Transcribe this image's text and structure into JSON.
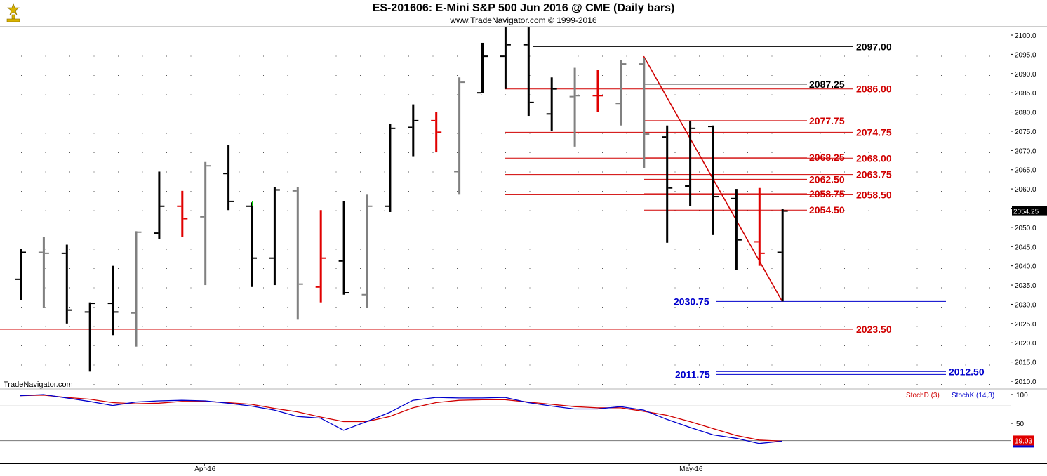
{
  "header": {
    "title": "ES-201606:  E-Mini S&P 500 Jun 2016 @ CME  (Daily bars)",
    "subtitle": "www.TradeNavigator.com © 1999-2016"
  },
  "watermark": "TradeNavigator.com",
  "colors": {
    "up": "#000000",
    "down": "#808080",
    "red_bar": "#e00000",
    "green": "#00cc00",
    "red_line": "#d00000",
    "blue": "#0000cc",
    "black_line": "#000000"
  },
  "chart_data": {
    "type": "bar",
    "price_axis": {
      "min": 2008,
      "max": 2103,
      "ticks": [
        2010,
        2015,
        2020,
        2025,
        2030,
        2035,
        2040,
        2045,
        2050,
        2055,
        2060,
        2065,
        2070,
        2075,
        2080,
        2085,
        2090,
        2095,
        2100
      ]
    },
    "last_price_label": "2054.25",
    "x_tick_labels": [
      {
        "index": 8,
        "label": "Apr-16"
      },
      {
        "index": 29,
        "label": "May-16"
      }
    ],
    "bars": [
      {
        "o": 2036.5,
        "h": 2044.5,
        "l": 2031,
        "c": 2043.5,
        "color": "up"
      },
      {
        "o": 2043.5,
        "h": 2047.5,
        "l": 2029,
        "c": 2043.25,
        "color": "down"
      },
      {
        "o": 2043.25,
        "h": 2045.5,
        "l": 2025,
        "c": 2028.5,
        "color": "up"
      },
      {
        "o": 2028,
        "h": 2030.5,
        "l": 2012.5,
        "c": 2030.25,
        "color": "up"
      },
      {
        "o": 2030.25,
        "h": 2040,
        "l": 2022,
        "c": 2028,
        "color": "up"
      },
      {
        "o": 2027.75,
        "h": 2049,
        "l": 2019,
        "c": 2048.75,
        "color": "down"
      },
      {
        "o": 2048.5,
        "h": 2064.5,
        "l": 2047,
        "c": 2055.5,
        "color": "up"
      },
      {
        "o": 2055.5,
        "h": 2059.5,
        "l": 2047.5,
        "c": 2052.25,
        "color": "red"
      },
      {
        "o": 2052.75,
        "h": 2067,
        "l": 2035,
        "c": 2066,
        "color": "down"
      },
      {
        "o": 2064,
        "h": 2071.5,
        "l": 2054.5,
        "c": 2056.75,
        "color": "up"
      },
      {
        "o": 2055.5,
        "h": 2056.5,
        "l": 2034.5,
        "c": 2042,
        "color": "up"
      },
      {
        "o": 2042,
        "h": 2060.5,
        "l": 2035,
        "c": 2059.75,
        "color": "up"
      },
      {
        "o": 2059.5,
        "h": 2060.5,
        "l": 2026,
        "c": 2035.25,
        "color": "down"
      },
      {
        "o": 2034.5,
        "h": 2054.5,
        "l": 2030.5,
        "c": 2042,
        "color": "red"
      },
      {
        "o": 2041.25,
        "h": 2056.75,
        "l": 2032.5,
        "c": 2033,
        "color": "up"
      },
      {
        "o": 2032.5,
        "h": 2058.5,
        "l": 2029,
        "c": 2055.5,
        "color": "down"
      },
      {
        "o": 2055.5,
        "h": 2077,
        "l": 2054,
        "c": 2075.75,
        "color": "up"
      },
      {
        "o": 2076,
        "h": 2082,
        "l": 2068.5,
        "c": 2077.75,
        "color": "up"
      },
      {
        "o": 2077.75,
        "h": 2080,
        "l": 2069.5,
        "c": 2074.75,
        "color": "red"
      },
      {
        "o": 2064.5,
        "h": 2089,
        "l": 2058.5,
        "c": 2087.75,
        "color": "down"
      },
      {
        "o": 2085,
        "h": 2098,
        "l": 2085,
        "c": 2094.5,
        "color": "up"
      },
      {
        "o": 2094.5,
        "h": 2102,
        "l": 2086,
        "c": 2097.5,
        "color": "up"
      },
      {
        "o": 2097.5,
        "h": 2102,
        "l": 2079,
        "c": 2082.5,
        "color": "up"
      },
      {
        "o": 2079.5,
        "h": 2089,
        "l": 2075,
        "c": 2086,
        "color": "up"
      },
      {
        "o": 2084,
        "h": 2091.5,
        "l": 2071,
        "c": 2084.25,
        "color": "down"
      },
      {
        "o": 2084.25,
        "h": 2091,
        "l": 2080,
        "c": 2084.25,
        "color": "red"
      },
      {
        "o": 2082.25,
        "h": 2093.5,
        "l": 2076.5,
        "c": 2092.5,
        "color": "down"
      },
      {
        "o": 2092.5,
        "h": 2094,
        "l": 2065.5,
        "c": 2074.25,
        "color": "down"
      },
      {
        "o": 2073.5,
        "h": 2076.5,
        "l": 2046,
        "c": 2060.25,
        "color": "up"
      },
      {
        "o": 2060.75,
        "h": 2077.75,
        "l": 2055.5,
        "c": 2075.75,
        "color": "up"
      },
      {
        "o": 2076.25,
        "h": 2076.5,
        "l": 2048,
        "c": 2058,
        "color": "up"
      },
      {
        "o": 2057.5,
        "h": 2060,
        "l": 2039,
        "c": 2046.75,
        "color": "up"
      },
      {
        "o": 2046.25,
        "h": 2060.25,
        "l": 2040,
        "c": 2043.25,
        "color": "red"
      },
      {
        "o": 2043.5,
        "h": 2054.75,
        "l": 2030.75,
        "c": 2054.25,
        "color": "up"
      }
    ],
    "level_lines": [
      {
        "label": "2097.00",
        "color": "black",
        "value": 2097.0,
        "from": 21,
        "to": 35
      },
      {
        "label": "2087.25",
        "color": "black",
        "value": 2087.25,
        "from": 27,
        "to": 31
      },
      {
        "label": "2086.00",
        "color": "red",
        "value": 2086.0,
        "from": 21,
        "to": 35
      },
      {
        "label": "2077.75",
        "color": "red",
        "value": 2077.75,
        "from": 27,
        "to": 31
      },
      {
        "label": "2074.75",
        "color": "red",
        "value": 2074.75,
        "from": 21,
        "to": 35
      },
      {
        "label": "2068.25",
        "color": "red",
        "value": 2068.25,
        "from": 27,
        "to": 31
      },
      {
        "label": "2068.00",
        "color": "red",
        "value": 2068.0,
        "from": 21,
        "to": 35
      },
      {
        "label": "2063.75",
        "color": "red",
        "value": 2063.75,
        "from": 21,
        "to": 35
      },
      {
        "label": "2062.50",
        "color": "red",
        "value": 2062.5,
        "from": 27,
        "to": 31
      },
      {
        "label": "2058.75",
        "color": "red",
        "value": 2058.75,
        "from": 27,
        "to": 31
      },
      {
        "label": "2058.50",
        "color": "red",
        "value": 2058.5,
        "from": 21,
        "to": 35
      },
      {
        "label": "2054.50",
        "color": "red",
        "value": 2054.5,
        "from": 28,
        "to": 31
      },
      {
        "label": "2030.75",
        "color": "blue",
        "value": 2030.75,
        "from": 30,
        "to": 39
      },
      {
        "label": "2023.50",
        "color": "red",
        "value": 2023.5,
        "from": -1,
        "to": 35
      },
      {
        "label": "2011.75",
        "color": "blue",
        "value": 2011.75,
        "from": 30,
        "to": 40
      },
      {
        "label": "2012.50",
        "color": "blue",
        "value": 2012.5,
        "from": 30,
        "to": 40
      }
    ],
    "trend_line": {
      "from": {
        "index": 27,
        "value": 2094.5
      },
      "to": {
        "index": 33,
        "value": 2030.75
      }
    },
    "oscillator": {
      "axis_ticks": [
        100,
        50
      ],
      "reference_lines": [
        80,
        20
      ],
      "last_value_label": "19.03",
      "stochD": {
        "name": "StochD (3)",
        "values": [
          98,
          99,
          95,
          92,
          86,
          84,
          85,
          88,
          88,
          86,
          83,
          76,
          70,
          61,
          53,
          53,
          62,
          77,
          86,
          90,
          91,
          91,
          87,
          83,
          79,
          77,
          77,
          71,
          64,
          53,
          41,
          29,
          21,
          19
        ]
      },
      "stochK": {
        "name": "StochK (14,3)",
        "values": [
          98,
          100,
          94,
          88,
          81,
          87,
          89,
          90,
          89,
          85,
          80,
          73,
          62,
          59,
          38,
          53,
          69,
          90,
          95,
          94,
          94,
          95,
          86,
          80,
          75,
          75,
          79,
          73,
          57,
          43,
          30,
          24,
          15,
          19
        ]
      }
    }
  }
}
